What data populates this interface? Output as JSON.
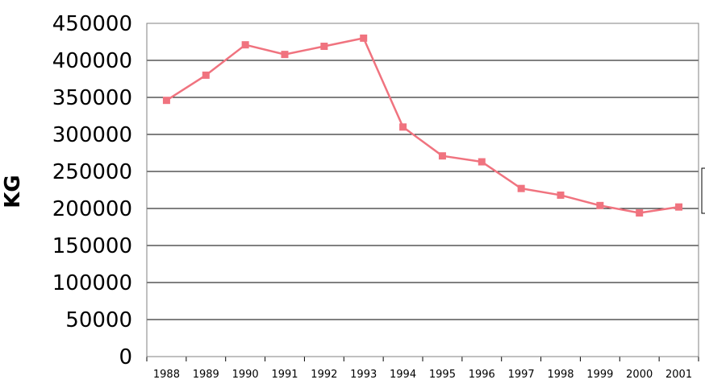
{
  "chart_data": {
    "type": "line",
    "title": "",
    "xlabel": "",
    "ylabel": "KG",
    "x": [
      "1988",
      "1989",
      "1990",
      "1991",
      "1992",
      "1993",
      "1994",
      "1995",
      "1996",
      "1997",
      "1998",
      "1999",
      "2000",
      "2001"
    ],
    "series": [
      {
        "color": "#f0737f",
        "values": [
          346000,
          380000,
          421000,
          408000,
          419000,
          430000,
          310000,
          271000,
          263000,
          227000,
          218000,
          204000,
          194000,
          202000
        ]
      }
    ],
    "ylim": [
      0,
      450000
    ],
    "yticks": [
      "450000",
      "400000",
      "350000",
      "300000",
      "250000",
      "200000",
      "150000",
      "100000",
      "50000",
      "0"
    ],
    "grid": true,
    "legend": "right-partially-visible"
  }
}
